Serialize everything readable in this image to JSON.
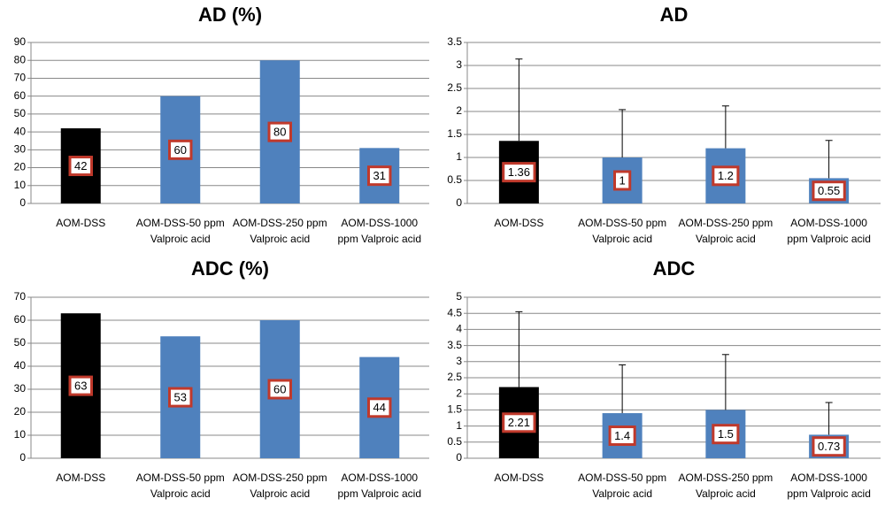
{
  "chart_data": [
    {
      "type": "bar",
      "title": "AD (%)",
      "categories": [
        [
          "AOM-DSS"
        ],
        [
          "AOM-DSS-50 ppm",
          "Valproic acid"
        ],
        [
          "AOM-DSS-250 ppm",
          "Valproic acid"
        ],
        [
          "AOM-DSS-1000",
          "ppm Valproic acid"
        ]
      ],
      "values": [
        42,
        60,
        80,
        31
      ],
      "colors": [
        "#000000",
        "#4f81bd",
        "#4f81bd",
        "#4f81bd"
      ],
      "ylim": [
        0,
        90
      ],
      "yticks": [
        0,
        10,
        20,
        30,
        40,
        50,
        60,
        70,
        80,
        90
      ],
      "grid": true
    },
    {
      "type": "bar",
      "title": "AD",
      "categories": [
        [
          "AOM-DSS"
        ],
        [
          "AOM-DSS-50 ppm",
          "Valproic acid"
        ],
        [
          "AOM-DSS-250 ppm",
          "Valproic acid"
        ],
        [
          "AOM-DSS-1000",
          "ppm Valproic acid"
        ]
      ],
      "values": [
        1.36,
        1,
        1.2,
        0.55
      ],
      "yerr": [
        1.78,
        1.04,
        0.92,
        0.82
      ],
      "colors": [
        "#000000",
        "#4f81bd",
        "#4f81bd",
        "#4f81bd"
      ],
      "ylim": [
        0,
        3.5
      ],
      "yticks": [
        0,
        0.5,
        1,
        1.5,
        2,
        2.5,
        3,
        3.5
      ],
      "grid": true
    },
    {
      "type": "bar",
      "title": "ADC (%)",
      "categories": [
        [
          "AOM-DSS"
        ],
        [
          "AOM-DSS-50 ppm",
          "Valproic acid"
        ],
        [
          "AOM-DSS-250 ppm",
          "Valproic acid"
        ],
        [
          "AOM-DSS-1000",
          "ppm Valproic acid"
        ]
      ],
      "values": [
        63,
        53,
        60,
        44
      ],
      "colors": [
        "#000000",
        "#4f81bd",
        "#4f81bd",
        "#4f81bd"
      ],
      "ylim": [
        0,
        70
      ],
      "yticks": [
        0,
        10,
        20,
        30,
        40,
        50,
        60,
        70
      ],
      "grid": true
    },
    {
      "type": "bar",
      "title": "ADC",
      "categories": [
        [
          "AOM-DSS"
        ],
        [
          "AOM-DSS-50 ppm",
          "Valproic acid"
        ],
        [
          "AOM-DSS-250 ppm",
          "Valproic acid"
        ],
        [
          "AOM-DSS-1000",
          "ppm Valproic acid"
        ]
      ],
      "values": [
        2.21,
        1.4,
        1.5,
        0.73
      ],
      "yerr": [
        2.34,
        1.5,
        1.72,
        1.0
      ],
      "colors": [
        "#000000",
        "#4f81bd",
        "#4f81bd",
        "#4f81bd"
      ],
      "ylim": [
        0,
        5
      ],
      "yticks": [
        0,
        0.5,
        1,
        1.5,
        2,
        2.5,
        3,
        3.5,
        4,
        4.5,
        5
      ],
      "grid": true
    }
  ]
}
